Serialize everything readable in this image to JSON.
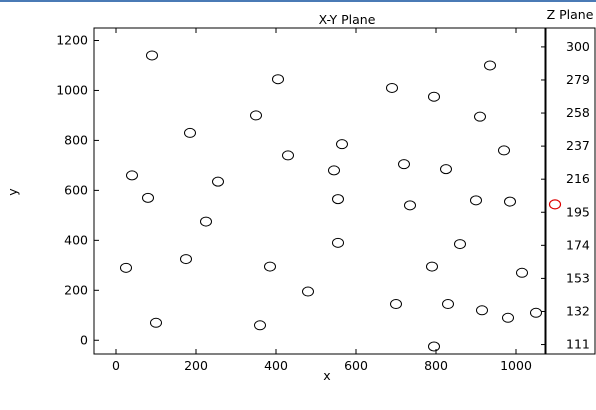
{
  "colors": {
    "top_line": "#4a7ab5",
    "marker": "#000000",
    "selected_marker": "#dd0000"
  },
  "chart_data": [
    {
      "type": "scatter",
      "title": "X-Y Plane",
      "xlabel": "x",
      "ylabel": "y",
      "xlim": [
        -55,
        1075
      ],
      "ylim": [
        -55,
        1250
      ],
      "xticks": [
        0,
        200,
        400,
        600,
        800,
        1000
      ],
      "yticks": [
        0,
        200,
        400,
        600,
        800,
        1000,
        1200
      ],
      "grid": false,
      "marker": "open-circle",
      "points": [
        [
          90,
          1140
        ],
        [
          405,
          1045
        ],
        [
          690,
          1010
        ],
        [
          795,
          975
        ],
        [
          935,
          1100
        ],
        [
          910,
          895
        ],
        [
          350,
          900
        ],
        [
          185,
          830
        ],
        [
          565,
          785
        ],
        [
          970,
          760
        ],
        [
          430,
          740
        ],
        [
          720,
          705
        ],
        [
          825,
          685
        ],
        [
          545,
          680
        ],
        [
          40,
          660
        ],
        [
          255,
          635
        ],
        [
          80,
          570
        ],
        [
          555,
          565
        ],
        [
          900,
          560
        ],
        [
          735,
          540
        ],
        [
          985,
          555
        ],
        [
          225,
          475
        ],
        [
          555,
          390
        ],
        [
          860,
          385
        ],
        [
          175,
          325
        ],
        [
          25,
          290
        ],
        [
          385,
          295
        ],
        [
          790,
          295
        ],
        [
          1015,
          270
        ],
        [
          480,
          195
        ],
        [
          700,
          145
        ],
        [
          830,
          145
        ],
        [
          915,
          120
        ],
        [
          980,
          90
        ],
        [
          1050,
          110
        ],
        [
          100,
          70
        ],
        [
          360,
          60
        ],
        [
          795,
          -25
        ]
      ]
    },
    {
      "type": "scatter",
      "title": "Z Plane",
      "ylim": [
        105,
        312
      ],
      "yticks": [
        300,
        279,
        258,
        237,
        216,
        195,
        174,
        153,
        132,
        111
      ],
      "grid": false,
      "marker": "open-circle",
      "points": [
        [
          0,
          200
        ]
      ],
      "selected_color": "#dd0000"
    }
  ]
}
